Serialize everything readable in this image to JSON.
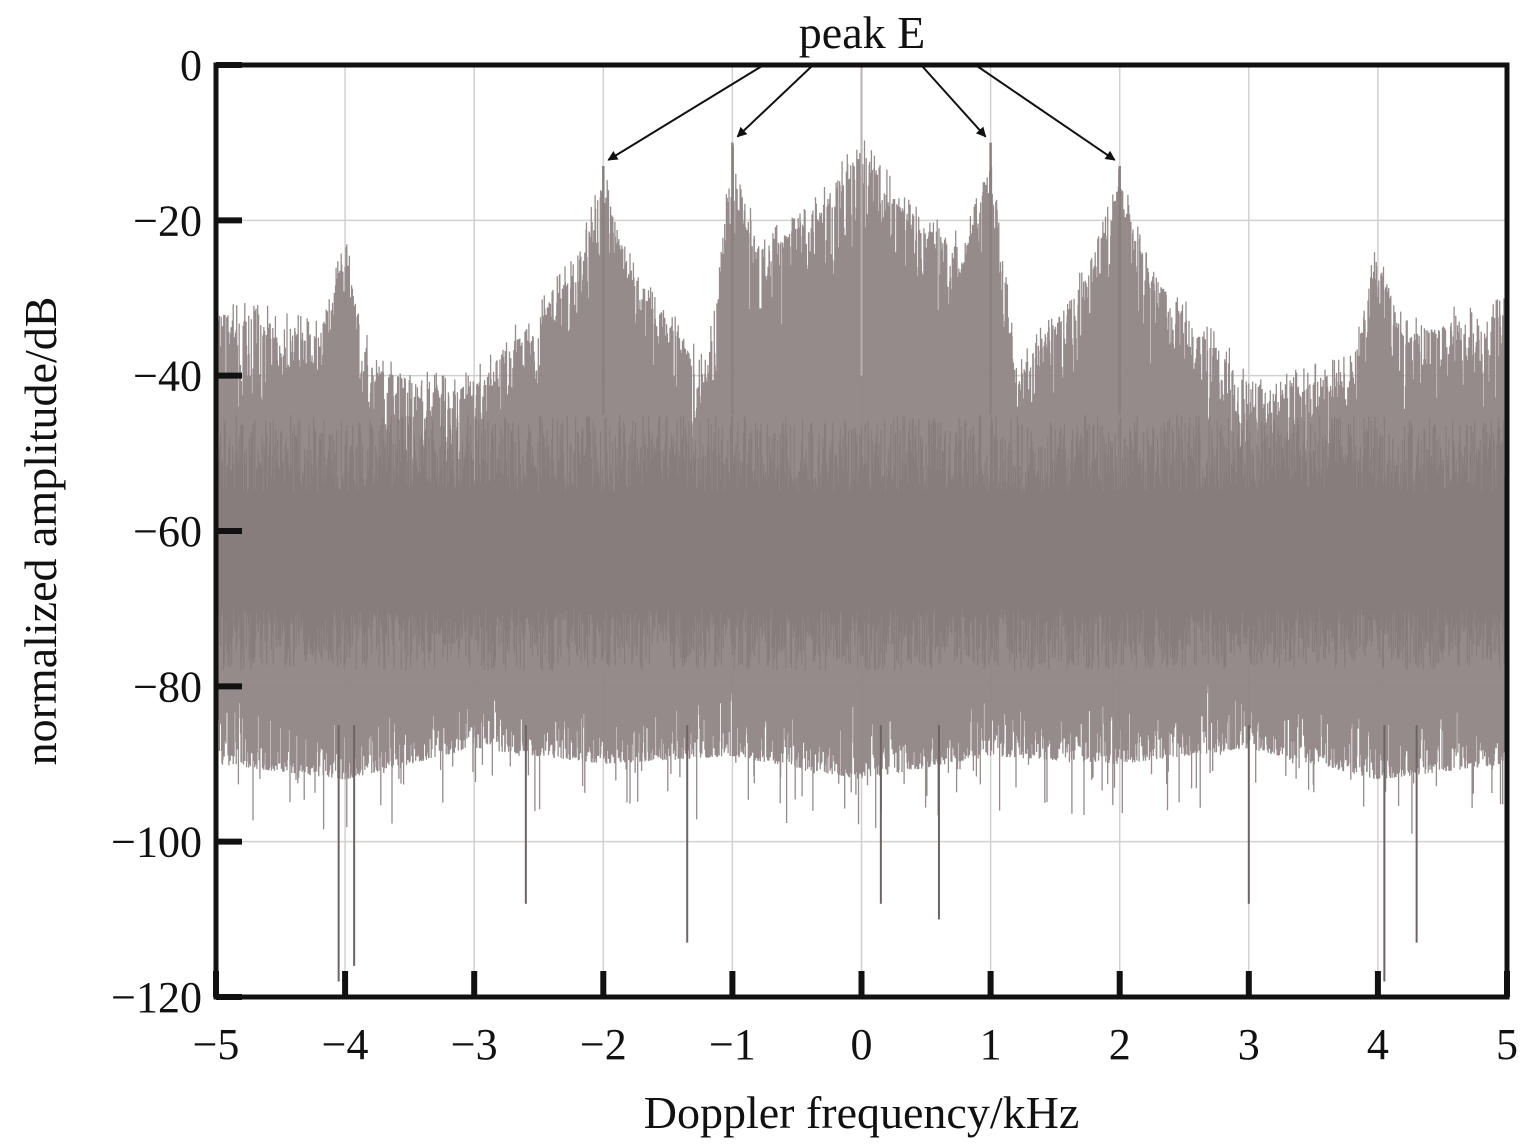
{
  "chart_data": {
    "type": "line",
    "xlabel": "Doppler frequency/kHz",
    "ylabel": "normalized amplitude/dB",
    "xlim": [
      -5,
      5
    ],
    "ylim": [
      -120,
      0
    ],
    "x_ticks": [
      -5,
      -4,
      -3,
      -2,
      -1,
      0,
      1,
      2,
      3,
      4,
      5
    ],
    "x_tick_labels": [
      "−5",
      "−4",
      "−3",
      "−2",
      "−1",
      "0",
      "1",
      "2",
      "3",
      "4",
      "5"
    ],
    "y_ticks": [
      0,
      -20,
      -40,
      -60,
      -80,
      -100,
      -120
    ],
    "y_tick_labels": [
      "0",
      "−20",
      "−40",
      "−60",
      "−80",
      "−100",
      "−120"
    ],
    "grid": true,
    "series": [
      {
        "color": "#8f8585",
        "envelope_upper_db": {
          "x": [
            -5,
            -4.6,
            -4.2,
            -4.0,
            -3.8,
            -3.2,
            -3.0,
            -2.6,
            -2.2,
            -2.0,
            -1.8,
            -1.2,
            -1.0,
            -0.8,
            -0.4,
            0,
            0.4,
            0.8,
            1.0,
            1.2,
            1.8,
            2.0,
            2.2,
            2.6,
            3.0,
            3.2,
            3.8,
            4.0,
            4.2,
            4.6,
            5
          ],
          "y": [
            -30,
            -31,
            -33,
            -22,
            -37,
            -40,
            -39,
            -32,
            -24,
            -13,
            -24,
            -38,
            -10,
            -22,
            -18,
            -9,
            -18,
            -22,
            -10,
            -38,
            -24,
            -13,
            -24,
            -32,
            -39,
            -40,
            -37,
            -22,
            -33,
            -31,
            -30
          ]
        },
        "envelope_lower_db": {
          "x": [
            -5,
            -4,
            -3,
            -2,
            -1,
            0,
            1,
            2,
            3,
            4,
            5
          ],
          "y": [
            -90,
            -92,
            -88,
            -90,
            -89,
            -92,
            -89,
            -90,
            -88,
            -92,
            -90
          ]
        },
        "deep_dips_db": [
          {
            "x": -4.05,
            "y": -118
          },
          {
            "x": -3.93,
            "y": -116
          },
          {
            "x": -2.6,
            "y": -108
          },
          {
            "x": -1.35,
            "y": -113
          },
          {
            "x": 0.15,
            "y": -108
          },
          {
            "x": 0.6,
            "y": -110
          },
          {
            "x": 3.0,
            "y": -108
          },
          {
            "x": 4.05,
            "y": -118
          },
          {
            "x": 4.3,
            "y": -113
          }
        ]
      }
    ],
    "annotation": {
      "text": "peak E",
      "targets": [
        {
          "x": -2,
          "y": -13
        },
        {
          "x": -1,
          "y": -10
        },
        {
          "x": 1,
          "y": -10
        },
        {
          "x": 2,
          "y": -13
        }
      ]
    }
  }
}
